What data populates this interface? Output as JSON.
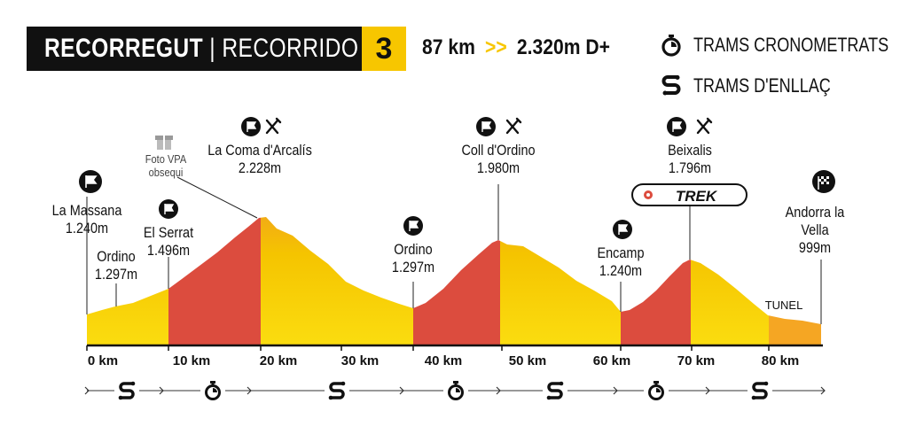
{
  "header": {
    "title_left": "RECORREGUT",
    "title_sep": "|",
    "title_right": "RECORRIDO",
    "stage_number": "3",
    "distance": "87 km",
    "arrows": ">>",
    "elevation": "2.320m D+"
  },
  "legend": {
    "timed": "TRAMS CRONOMETRATS",
    "liaison": "TRAMS D'ENLLAÇ"
  },
  "colors": {
    "timed_red": "#dc4c3e",
    "liaison_yellow": "#f7c600",
    "tunnel_orange": "#f5a623",
    "accent_yellow": "#f7c600",
    "dark": "#111111"
  },
  "points": [
    {
      "name": "La Massana",
      "alt": "1.240m",
      "km": 0,
      "icon": "flag-icon"
    },
    {
      "name": "Ordino",
      "alt": "1.297m",
      "km": 4,
      "icon": ""
    },
    {
      "name": "El Serrat",
      "alt": "1.496m",
      "km": 10,
      "icon": "flag-icon"
    },
    {
      "name": "La Coma d'Arcalís",
      "alt": "2.228m",
      "km": 21,
      "icon": "flag-icon"
    },
    {
      "name": "Ordino",
      "alt": "1.297m",
      "km": 40,
      "icon": "flag-icon"
    },
    {
      "name": "Coll d'Ordino",
      "alt": "1.980m",
      "km": 50,
      "icon": "flag-icon"
    },
    {
      "name": "Encamp",
      "alt": "1.240m",
      "km": 63,
      "icon": "flag-icon"
    },
    {
      "name": "Beixalis",
      "alt": "1.796m",
      "km": 73,
      "icon": "flag-icon"
    },
    {
      "name": "Andorra la",
      "name2": "Vella",
      "alt": "999m",
      "km": 87,
      "icon": "finish-flag-icon"
    }
  ],
  "gift": {
    "line1": "Foto VPA",
    "line2": "obsequi"
  },
  "sponsor": "TREK",
  "tunnel": "TUNEL",
  "axis_ticks": [
    "0 km",
    "10 km",
    "20 km",
    "30 km",
    "40 km",
    "50 km",
    "60 km",
    "70 km",
    "80 km"
  ],
  "segments": [
    "liaison",
    "timed",
    "liaison",
    "timed",
    "liaison",
    "timed",
    "liaison"
  ]
}
